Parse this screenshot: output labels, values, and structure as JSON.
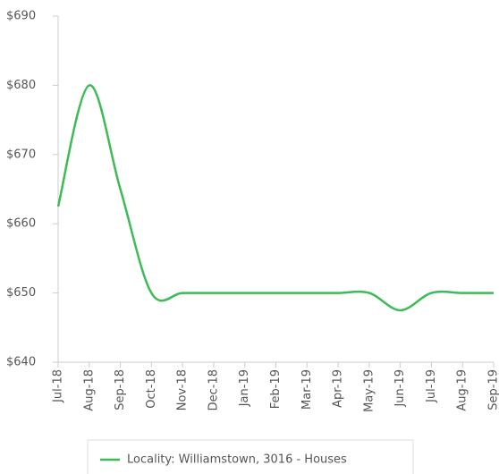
{
  "chart_data": {
    "type": "line",
    "categories": [
      "Jul-18",
      "Aug-18",
      "Sep-18",
      "Oct-18",
      "Nov-18",
      "Dec-18",
      "Jan-19",
      "Feb-19",
      "Mar-19",
      "Apr-19",
      "May-19",
      "Jun-19",
      "Jul-19",
      "Aug-19",
      "Sep-19"
    ],
    "series": [
      {
        "name": "Locality: Williamstown, 3016 - Houses",
        "color": "#3dbb56",
        "values": [
          662.5,
          680,
          665,
          650,
          650,
          650,
          650,
          650,
          650,
          650,
          650,
          647.5,
          650,
          650,
          650
        ]
      }
    ],
    "ylim": [
      640,
      690
    ],
    "yticks": [
      {
        "value": 640,
        "label": "$640"
      },
      {
        "value": 650,
        "label": "$650"
      },
      {
        "value": 660,
        "label": "$660"
      },
      {
        "value": 670,
        "label": "$670"
      },
      {
        "value": 680,
        "label": "$680"
      },
      {
        "value": 690,
        "label": "$690"
      }
    ],
    "grid": false,
    "legend": "bottom"
  }
}
